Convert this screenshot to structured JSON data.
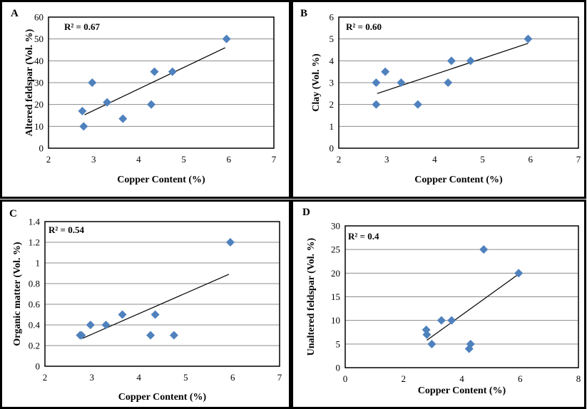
{
  "chart_data": [
    {
      "panel": "A",
      "type": "scatter",
      "r2_label": "R² = 0.67",
      "xlabel": "Copper Content (%)",
      "ylabel": "Altered feldspar (Vol. %)",
      "xlim": [
        2,
        7
      ],
      "ylim": [
        0,
        60
      ],
      "xticks": [
        2,
        3,
        4,
        5,
        6,
        7
      ],
      "yticks": [
        0,
        10,
        20,
        30,
        40,
        50,
        60
      ],
      "points": [
        [
          2.75,
          17
        ],
        [
          2.78,
          10
        ],
        [
          2.97,
          30
        ],
        [
          3.3,
          21
        ],
        [
          3.65,
          13.5
        ],
        [
          4.28,
          20
        ],
        [
          4.35,
          35
        ],
        [
          4.75,
          35
        ],
        [
          5.95,
          50
        ]
      ],
      "trendline": [
        [
          2.8,
          15.3
        ],
        [
          5.92,
          46
        ]
      ],
      "grid": "horizontal",
      "marker_color": "#4f81bd"
    },
    {
      "panel": "B",
      "type": "scatter",
      "r2_label": "R² = 0.60",
      "xlabel": "Copper Content (%)",
      "ylabel": "Clay (Vol. %)",
      "xlim": [
        2,
        7
      ],
      "ylim": [
        0,
        6
      ],
      "xticks": [
        2,
        3,
        4,
        5,
        6,
        7
      ],
      "yticks": [
        0,
        1,
        2,
        3,
        4,
        5,
        6
      ],
      "points": [
        [
          2.78,
          3
        ],
        [
          2.78,
          2
        ],
        [
          2.97,
          3.5
        ],
        [
          3.3,
          3
        ],
        [
          3.65,
          2
        ],
        [
          4.28,
          3
        ],
        [
          4.35,
          4
        ],
        [
          4.75,
          4
        ],
        [
          5.95,
          5
        ]
      ],
      "trendline": [
        [
          2.8,
          2.5
        ],
        [
          5.95,
          4.8
        ]
      ],
      "grid": "horizontal",
      "marker_color": "#4f81bd"
    },
    {
      "panel": "C",
      "type": "scatter",
      "r2_label": "R² = 0.54",
      "xlabel": "Copper Content (%)",
      "ylabel": "Organic matter (Vol. %)",
      "xlim": [
        2,
        7
      ],
      "ylim": [
        0,
        1.4
      ],
      "xticks": [
        2,
        3,
        4,
        5,
        6,
        7
      ],
      "yticks": [
        "0",
        "0.2",
        "0.4",
        "0.6",
        "0.8",
        "1",
        "1.2",
        "1.4"
      ],
      "points": [
        [
          2.75,
          0.3
        ],
        [
          2.78,
          0.3
        ],
        [
          2.97,
          0.4
        ],
        [
          3.3,
          0.4
        ],
        [
          3.65,
          0.5
        ],
        [
          4.25,
          0.3
        ],
        [
          4.35,
          0.5
        ],
        [
          4.75,
          0.3
        ],
        [
          5.95,
          1.2
        ]
      ],
      "trendline": [
        [
          2.8,
          0.27
        ],
        [
          5.92,
          0.89
        ]
      ],
      "grid": "horizontal",
      "marker_color": "#4f81bd"
    },
    {
      "panel": "D",
      "type": "scatter",
      "r2_label": "R² = 0.4",
      "xlabel": "Copper Content (%)",
      "ylabel": "Unaltered feldspar (Vol. %)",
      "xlim": [
        0,
        8
      ],
      "ylim": [
        0,
        30
      ],
      "xticks": [
        0,
        2,
        4,
        6,
        8
      ],
      "yticks": [
        0,
        5,
        10,
        15,
        20,
        25,
        30
      ],
      "points": [
        [
          2.78,
          8
        ],
        [
          2.8,
          7
        ],
        [
          2.97,
          5
        ],
        [
          3.3,
          10
        ],
        [
          3.65,
          10
        ],
        [
          4.25,
          4
        ],
        [
          4.3,
          5
        ],
        [
          4.75,
          25
        ],
        [
          5.95,
          20
        ]
      ],
      "trendline": [
        [
          2.8,
          5.8
        ],
        [
          5.95,
          19.8
        ]
      ],
      "grid": "horizontal",
      "marker_color": "#4f81bd"
    }
  ]
}
